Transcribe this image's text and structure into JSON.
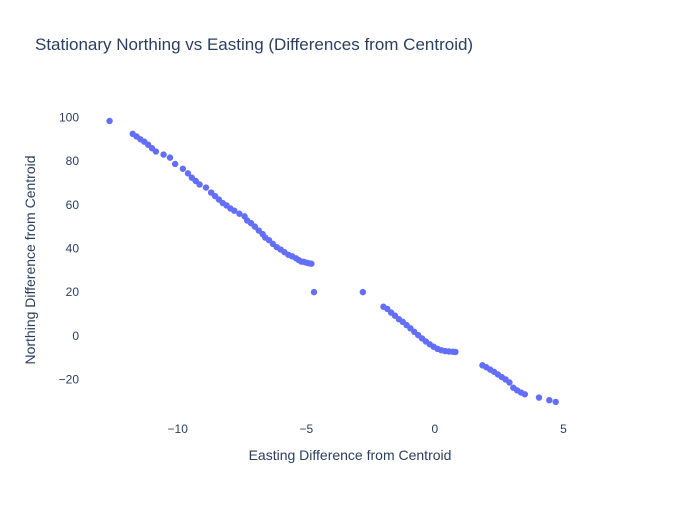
{
  "chart_data": {
    "type": "scatter",
    "title": "Stationary Northing vs Easting (Differences from Centroid)",
    "xlabel": "Easting Difference from Centroid",
    "ylabel": "Northing Difference from Centroid",
    "xlim": [
      -13.8,
      7.2
    ],
    "ylim": [
      -34,
      108
    ],
    "xticks": [
      -10,
      -5,
      0,
      5
    ],
    "xtick_labels": [
      "−10",
      "−5",
      "0",
      "5"
    ],
    "yticks": [
      -20,
      0,
      20,
      40,
      60,
      80,
      100
    ],
    "ytick_labels": [
      "−20",
      "0",
      "20",
      "40",
      "60",
      "80",
      "100"
    ],
    "grid": false,
    "legend": "none",
    "colors": {
      "marker": "#636efa",
      "title": "#2a3f5f",
      "axis_text": "#2a3f5f"
    },
    "series": [
      {
        "x": [
          -12.65,
          -11.75,
          -11.6,
          -11.45,
          -11.3,
          -11.15,
          -11.0,
          -10.85,
          -10.55,
          -10.3,
          -10.1,
          -9.8,
          -9.6,
          -9.45,
          -9.3,
          -9.15,
          -8.9,
          -8.7,
          -8.55,
          -8.4,
          -8.25,
          -8.1,
          -7.95,
          -7.8,
          -7.6,
          -7.4,
          -7.3,
          -7.15,
          -7.0,
          -6.85,
          -6.7,
          -6.6,
          -6.45,
          -6.3,
          -6.15,
          -6.0,
          -5.85,
          -5.7,
          -5.55,
          -5.4,
          -5.3,
          -5.2,
          -5.1,
          -5.0,
          -4.9,
          -4.8,
          -4.7,
          -2.8,
          -2.0,
          -1.85,
          -1.7,
          -1.55,
          -1.4,
          -1.25,
          -1.1,
          -0.95,
          -0.8,
          -0.65,
          -0.5,
          -0.35,
          -0.2,
          -0.05,
          0.1,
          0.25,
          0.4,
          0.55,
          0.7,
          0.8,
          1.85,
          2.0,
          2.15,
          2.3,
          2.45,
          2.6,
          2.75,
          2.9,
          3.05,
          3.2,
          3.35,
          3.5,
          4.05,
          4.45,
          4.7
        ],
        "y": [
          98.4,
          92.5,
          91.3,
          90.0,
          88.9,
          87.5,
          85.9,
          84.4,
          83.0,
          81.6,
          78.7,
          76.5,
          74.4,
          72.4,
          70.9,
          69.3,
          67.9,
          65.6,
          64.0,
          62.4,
          60.8,
          59.7,
          58.3,
          57.3,
          55.9,
          54.7,
          52.8,
          51.6,
          50.0,
          48.2,
          46.6,
          45.0,
          43.8,
          42.1,
          40.6,
          39.5,
          38.3,
          37.1,
          36.4,
          35.5,
          34.7,
          34.0,
          33.9,
          33.5,
          33.2,
          33.0,
          20.0,
          20.0,
          13.3,
          12.3,
          10.6,
          9.2,
          7.6,
          6.4,
          4.9,
          3.4,
          1.8,
          0.3,
          -1.2,
          -2.6,
          -3.9,
          -5.0,
          -6.0,
          -6.6,
          -7.0,
          -7.2,
          -7.3,
          -7.4,
          -13.5,
          -14.4,
          -15.5,
          -16.5,
          -17.7,
          -18.9,
          -20.0,
          -21.4,
          -23.8,
          -25.0,
          -26.0,
          -26.8,
          -28.3,
          -29.5,
          -30.3
        ]
      }
    ]
  }
}
